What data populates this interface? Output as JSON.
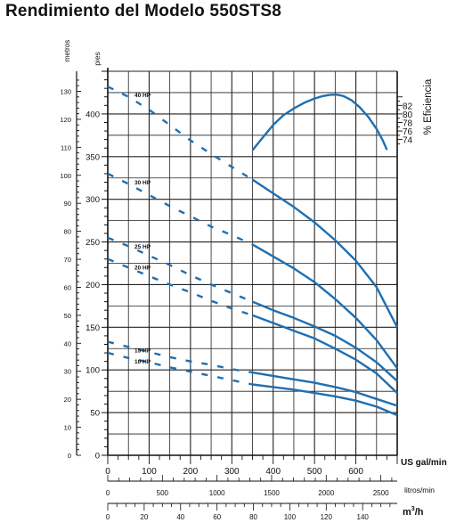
{
  "chart_data": {
    "type": "line",
    "title": "Rendimiento del Modelo 550STS8",
    "axes": {
      "metros_label": "metros",
      "pies_label": "pies",
      "eff_label": "% Eficiencia",
      "gpm_label": "US gal/min",
      "lpm_label": "litros/min",
      "m3h_label": "m",
      "m3h_sup": "3",
      "m3h_tail": "/h",
      "gpm_range": [
        0,
        700
      ],
      "pies_range": [
        0,
        450
      ],
      "metros_range": [
        0,
        137.16
      ],
      "eff_range": [
        0,
        90
      ],
      "gpm_ticks": [
        "0",
        "100",
        "200",
        "300",
        "400",
        "500",
        "600"
      ],
      "pies_ticks": [
        "0",
        "50",
        "100",
        "150",
        "200",
        "250",
        "300",
        "350",
        "400"
      ],
      "metros_ticks": [
        "0",
        "10",
        "20",
        "30",
        "40",
        "50",
        "60",
        "70",
        "80",
        "90",
        "100",
        "110",
        "120",
        "130"
      ],
      "eff_ticks": [
        "74",
        "76",
        "78",
        "80",
        "82"
      ],
      "lpm_ticks": [
        "0",
        "500",
        "1000",
        "1500",
        "2000",
        "2500"
      ],
      "m3h_ticks": [
        "0",
        "20",
        "40",
        "60",
        "80",
        "100",
        "120",
        "140"
      ]
    },
    "grid": true,
    "efficiency_curve": {
      "x": [
        350,
        375,
        400,
        425,
        450,
        475,
        500,
        520,
        540,
        555,
        570,
        590,
        610,
        630,
        650,
        665,
        675
      ],
      "y": [
        71.5,
        74.5,
        77.4,
        79.7,
        81.3,
        82.6,
        83.6,
        84.2,
        84.5,
        84.5,
        84.2,
        83.2,
        81.5,
        79.3,
        76.5,
        73.8,
        71.6
      ]
    },
    "series": [
      {
        "name": "40 HP",
        "x": [
          0,
          50,
          100,
          150,
          200,
          250,
          300,
          350,
          400,
          450,
          500,
          550,
          600,
          650,
          700
        ],
        "y": [
          432,
          420,
          405,
          387,
          369,
          353,
          338,
          323,
          307,
          291,
          273,
          252,
          228,
          197,
          150
        ]
      },
      {
        "name": "30 HP",
        "x": [
          0,
          50,
          100,
          150,
          200,
          250,
          300,
          350,
          400,
          450,
          500,
          550,
          600,
          650,
          700
        ],
        "y": [
          330,
          318,
          305,
          292,
          280,
          268,
          258,
          247,
          233,
          219,
          203,
          183,
          161,
          135,
          102
        ]
      },
      {
        "name": "25 HP",
        "x": [
          0,
          50,
          100,
          150,
          200,
          250,
          300,
          350,
          400,
          450,
          500,
          550,
          600,
          650,
          700
        ],
        "y": [
          255,
          245,
          234,
          223,
          211,
          200,
          190,
          180,
          170,
          161,
          151,
          140,
          126,
          109,
          87
        ]
      },
      {
        "name": "20 HP",
        "x": [
          0,
          50,
          100,
          150,
          200,
          250,
          300,
          350,
          400,
          450,
          500,
          550,
          600,
          650,
          700
        ],
        "y": [
          230,
          220,
          210,
          200,
          191,
          181,
          172,
          164,
          155,
          146,
          137,
          125,
          112,
          96,
          73
        ]
      },
      {
        "name": "15 HP",
        "x": [
          0,
          50,
          100,
          150,
          200,
          250,
          300,
          350,
          400,
          450,
          500,
          550,
          600,
          650,
          700
        ],
        "y": [
          133,
          127,
          121,
          115,
          110,
          106,
          101,
          97,
          93,
          89,
          85,
          80,
          74,
          66,
          58
        ]
      },
      {
        "name": "10 HP",
        "x": [
          0,
          50,
          100,
          150,
          200,
          250,
          300,
          350,
          400,
          450,
          500,
          550,
          600,
          650,
          700
        ],
        "y": [
          120,
          114,
          109,
          103,
          98,
          93,
          88,
          83,
          80,
          77,
          73,
          69,
          64,
          57,
          47
        ]
      }
    ],
    "colors": {
      "curve": "#1f6fb1",
      "grid": "#222222",
      "axis": "#111111"
    }
  }
}
